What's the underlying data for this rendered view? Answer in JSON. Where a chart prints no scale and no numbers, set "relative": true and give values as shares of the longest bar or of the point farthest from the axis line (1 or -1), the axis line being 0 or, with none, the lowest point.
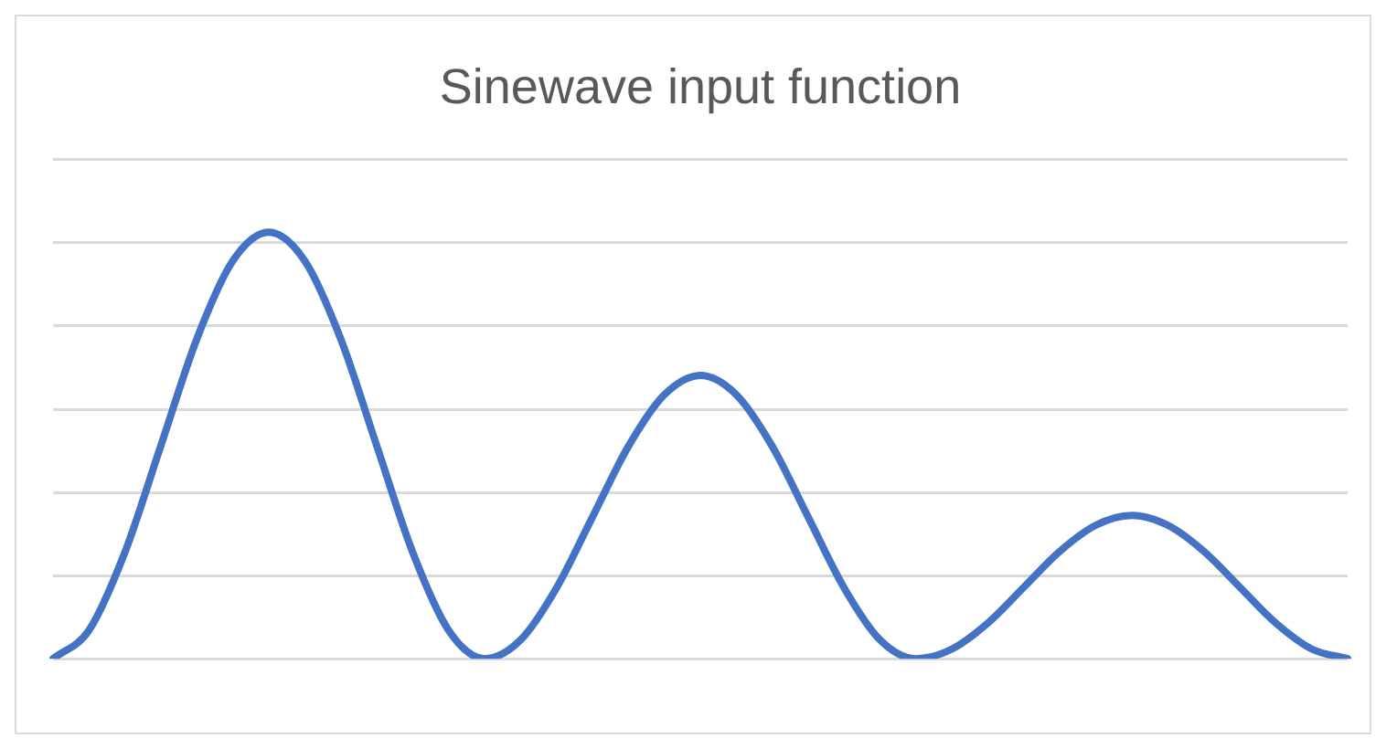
{
  "chart_data": {
    "type": "line",
    "title": "Sinewave input function",
    "relative": true,
    "grid": "y",
    "marker": "none",
    "legend": false,
    "categories": [
      null,
      null,
      null,
      null,
      null,
      null,
      null,
      null,
      null,
      null,
      null,
      null,
      null,
      null,
      null,
      null,
      null,
      null,
      null,
      null,
      null,
      null,
      null,
      null,
      null,
      null,
      null,
      null,
      null,
      null,
      null,
      null,
      null,
      null,
      null,
      null,
      null
    ],
    "series": [
      {
        "color": "#4472c4",
        "values": [
          0,
          0.067,
          0.25,
          0.5,
          0.75,
          0.933,
          1,
          0.933,
          0.75,
          0.5,
          0.25,
          0.067,
          0,
          0.044,
          0.166,
          0.332,
          0.498,
          0.619,
          0.664,
          0.619,
          0.498,
          0.332,
          0.166,
          0.044,
          0,
          0.023,
          0.084,
          0.168,
          0.252,
          0.313,
          0.336,
          0.313,
          0.252,
          0.168,
          0.084,
          0.023,
          0
        ]
      }
    ]
  }
}
